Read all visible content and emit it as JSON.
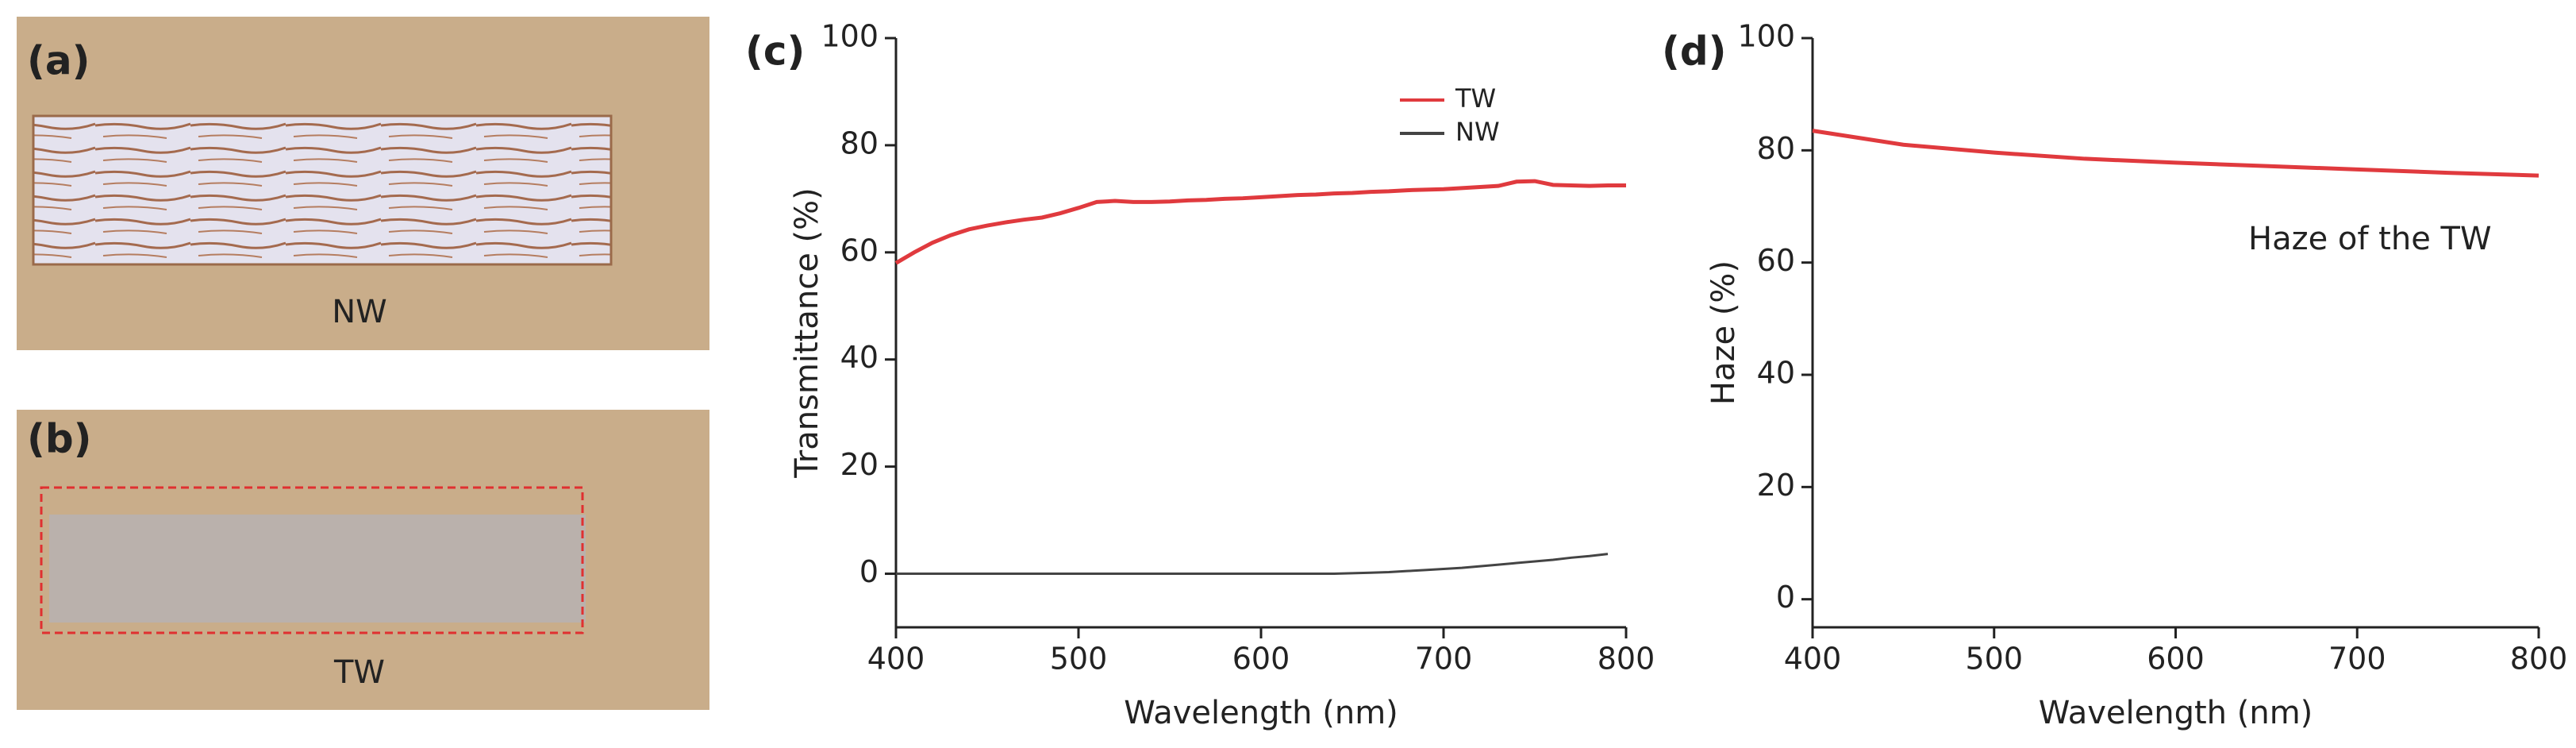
{
  "photos": [
    {
      "label": "(a)",
      "caption": "NW"
    },
    {
      "label": "(b)",
      "caption": "TW"
    }
  ],
  "chart_data": [
    {
      "type": "line",
      "panel": "(c)",
      "x_label": "Wavelength (nm)",
      "y_label": "Transmittance (%)",
      "x": [
        400,
        410,
        420,
        430,
        440,
        450,
        460,
        470,
        480,
        490,
        500,
        510,
        520,
        530,
        540,
        550,
        560,
        570,
        580,
        590,
        600,
        610,
        620,
        630,
        640,
        650,
        660,
        670,
        680,
        690,
        700,
        710,
        720,
        730,
        740,
        750,
        760,
        770,
        780,
        790,
        800
      ],
      "series": [
        {
          "name": "TW",
          "color": "#e03a3e",
          "values": [
            58,
            60,
            61.8,
            63.2,
            64.3,
            65,
            65.6,
            66.1,
            66.5,
            67.3,
            68.3,
            69.4,
            69.6,
            69.4,
            69.4,
            69.5,
            69.7,
            69.8,
            70,
            70.1,
            70.3,
            70.5,
            70.7,
            70.8,
            71,
            71.1,
            71.3,
            71.4,
            71.6,
            71.7,
            71.8,
            72,
            72.2,
            72.4,
            73.2,
            73.3,
            72.6,
            72.5,
            72.4,
            72.5,
            72.5
          ]
        },
        {
          "name": "NW",
          "color": "#444444",
          "values": [
            0,
            0,
            0,
            0,
            0,
            0,
            0,
            0,
            0,
            0,
            0,
            0,
            0,
            0,
            0,
            0,
            0,
            0,
            0,
            0,
            0,
            0,
            0,
            0,
            0,
            0.1,
            0.2,
            0.3,
            0.5,
            0.7,
            0.9,
            1.1,
            1.4,
            1.7,
            2,
            2.3,
            2.6,
            3,
            3.3,
            3.7,
            null
          ]
        }
      ],
      "xlim": [
        400,
        800
      ],
      "xticks": [
        400,
        500,
        600,
        700,
        800
      ],
      "ylim": [
        -10,
        100
      ],
      "yticks": [
        0,
        20,
        40,
        60,
        80,
        100
      ],
      "legend": "upper right"
    },
    {
      "type": "line",
      "panel": "(d)",
      "x_label": "Wavelength (nm)",
      "y_label": "Haze (%)",
      "annotation": "Haze of the TW",
      "x": [
        400,
        450,
        500,
        550,
        600,
        650,
        700,
        750,
        800
      ],
      "series": [
        {
          "color": "#e03a3e",
          "values": [
            83.5,
            81,
            79.6,
            78.5,
            77.8,
            77.2,
            76.6,
            76,
            75.5
          ]
        }
      ],
      "xlim": [
        400,
        800
      ],
      "xticks": [
        400,
        500,
        600,
        700,
        800
      ],
      "ylim": [
        -5,
        100
      ],
      "yticks": [
        0,
        20,
        40,
        60,
        80,
        100
      ]
    }
  ]
}
